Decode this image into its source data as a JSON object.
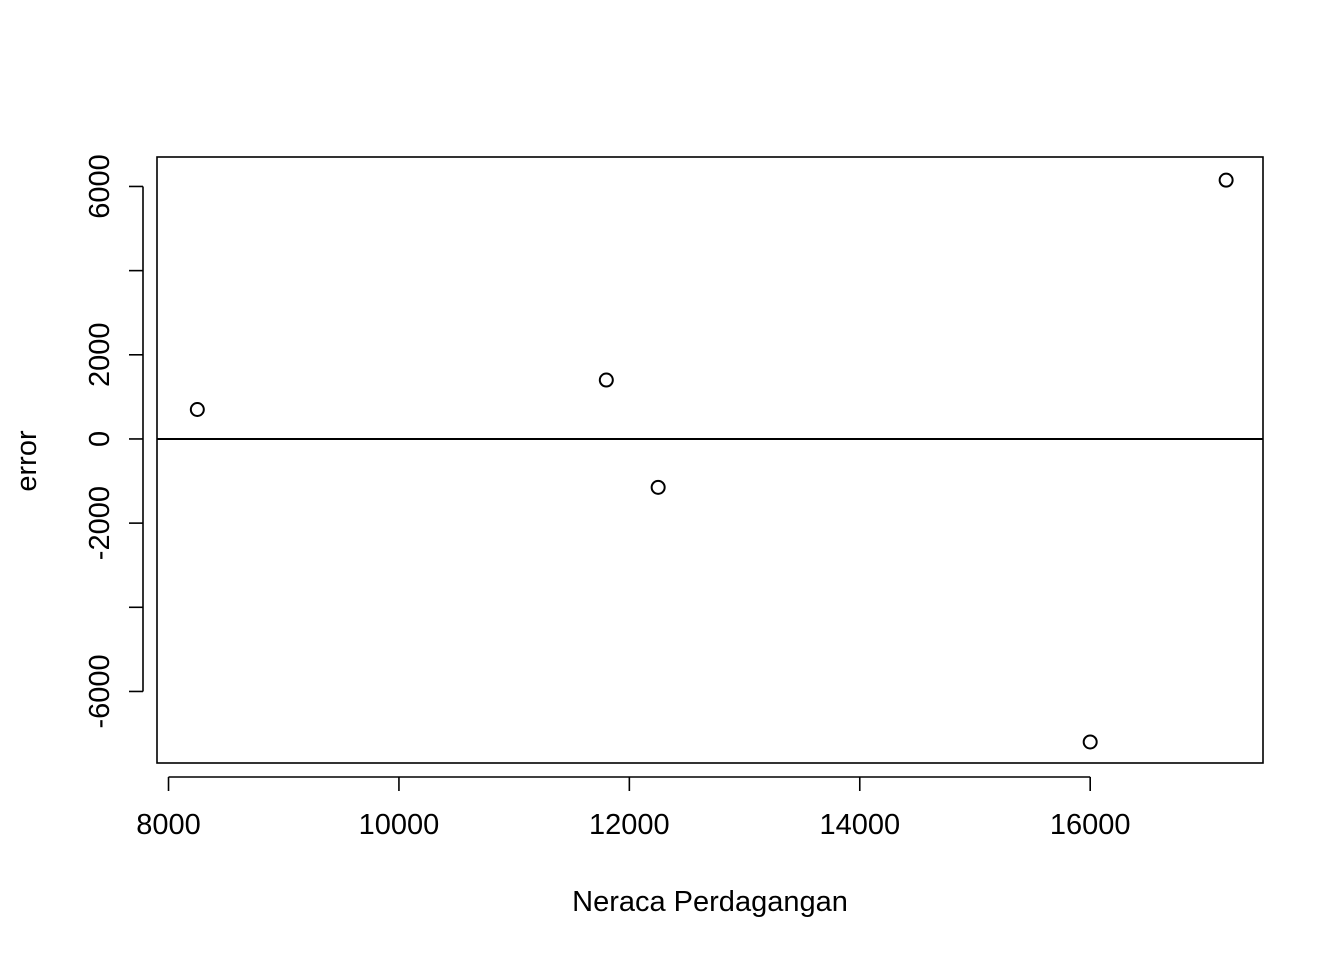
{
  "chart_data": {
    "type": "scatter",
    "title": "",
    "xlabel": "Neraca Perdagangan",
    "ylabel": "error",
    "xlim": [
      7900,
      17500
    ],
    "ylim": [
      -7700,
      6700
    ],
    "x_ticks": [
      8000,
      10000,
      12000,
      14000,
      16000
    ],
    "x_tick_labels": [
      "8000",
      "10000",
      "12000",
      "14000",
      "16000"
    ],
    "y_ticks": [
      -6000,
      -4000,
      -2000,
      0,
      2000,
      4000,
      6000
    ],
    "y_tick_labels": [
      "-6000",
      "",
      "-2000",
      "0",
      "2000",
      "",
      "6000"
    ],
    "reference_line": {
      "y": 0
    },
    "grid": false,
    "points": [
      {
        "x": 8250,
        "y": 700
      },
      {
        "x": 11800,
        "y": 1400
      },
      {
        "x": 12250,
        "y": -1150
      },
      {
        "x": 16000,
        "y": -7200
      },
      {
        "x": 17180,
        "y": 6150
      }
    ]
  }
}
